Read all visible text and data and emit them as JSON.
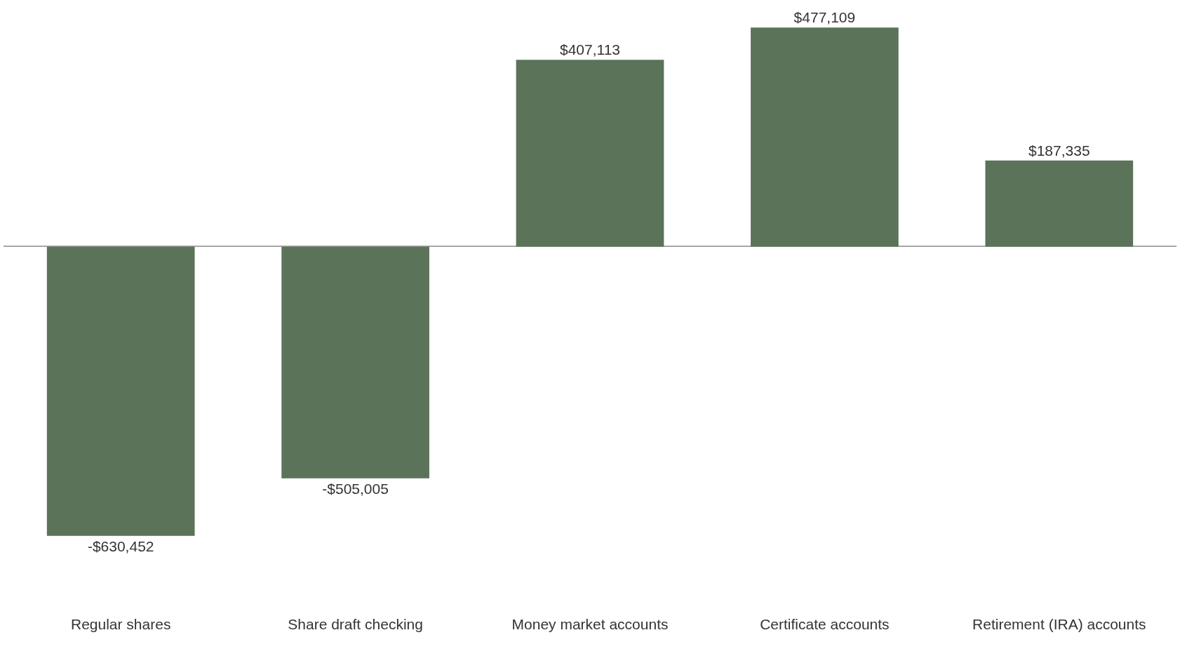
{
  "chart_data": {
    "type": "bar",
    "categories": [
      "Regular shares",
      "Share draft checking",
      "Money market accounts",
      "Certificate accounts",
      "Retirement (IRA) accounts"
    ],
    "values": [
      -630452,
      -505005,
      407113,
      477109,
      187335
    ],
    "value_labels": [
      "-$630,452",
      "-$505,005",
      "$407,113",
      "$477,109",
      "$187,335"
    ],
    "color": "#5a7359",
    "tick_labels": "x"
  }
}
